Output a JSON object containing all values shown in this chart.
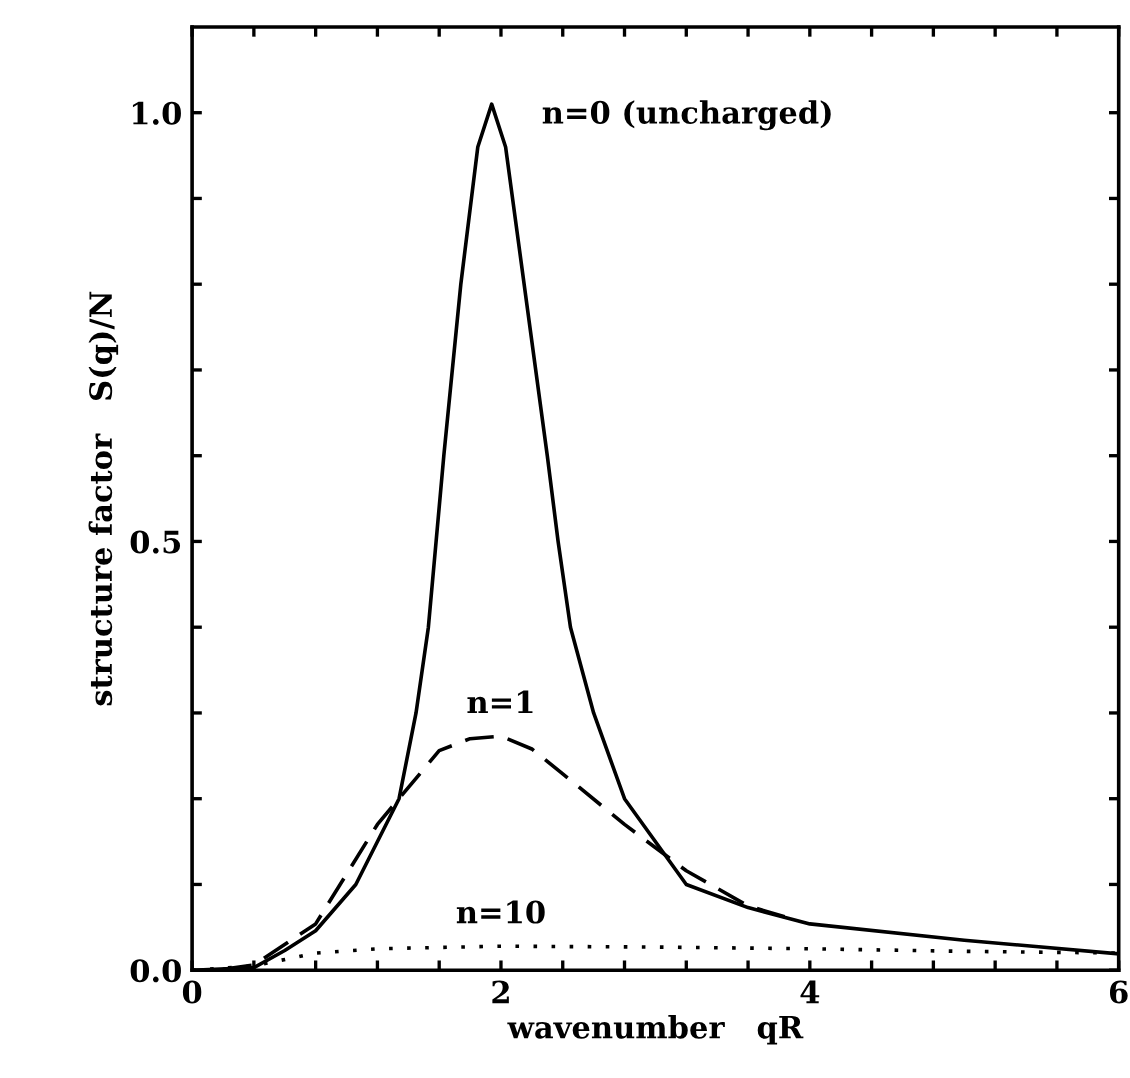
{
  "chart_data": {
    "type": "line",
    "xlabel": "wavenumber   qR",
    "ylabel": "structure factor   S(q)/N",
    "xlim": [
      0,
      6
    ],
    "ylim": [
      0,
      1.1
    ],
    "xticks": [
      0,
      {
        "value": 0.4,
        "label": null
      },
      {
        "value": 0.8,
        "label": null
      },
      {
        "value": 1.2,
        "label": null
      },
      {
        "value": 1.6,
        "label": null
      },
      2,
      {
        "value": 2.4,
        "label": null
      },
      {
        "value": 2.8,
        "label": null
      },
      {
        "value": 3.2,
        "label": null
      },
      {
        "value": 3.6,
        "label": null
      },
      4,
      {
        "value": 4.4,
        "label": null
      },
      {
        "value": 4.8,
        "label": null
      },
      {
        "value": 5.2,
        "label": null
      },
      {
        "value": 5.6,
        "label": null
      },
      6
    ],
    "yticks": [
      {
        "value": 0,
        "label": "0.0"
      },
      {
        "value": 0.1,
        "label": null
      },
      {
        "value": 0.2,
        "label": null
      },
      {
        "value": 0.3,
        "label": null
      },
      {
        "value": 0.4,
        "label": null
      },
      {
        "value": 0.5,
        "label": "0.5"
      },
      {
        "value": 0.6,
        "label": null
      },
      {
        "value": 0.7,
        "label": null
      },
      {
        "value": 0.8,
        "label": null
      },
      {
        "value": 0.9,
        "label": null
      },
      {
        "value": 1.0,
        "label": "1.0"
      }
    ],
    "grid": false,
    "legend": false,
    "series": [
      {
        "name": "n=0 (uncharged)",
        "color": "#000000",
        "line_style": "solid",
        "x": [
          0,
          0.4,
          0.6,
          0.8,
          1.06,
          1.34,
          1.45,
          1.53,
          1.58,
          1.63,
          1.74,
          1.85,
          1.94,
          2.03,
          2.15,
          2.3,
          2.37,
          2.45,
          2.6,
          2.8,
          3.2,
          3.6,
          4,
          5,
          6
        ],
        "values": [
          0,
          0.003,
          0.023,
          0.046,
          0.1,
          0.2,
          0.3,
          0.4,
          0.5,
          0.6,
          0.8,
          0.96,
          1.01,
          0.96,
          0.8,
          0.6,
          0.5,
          0.4,
          0.3,
          0.2,
          0.1,
          0.073,
          0.054,
          0.035,
          0.019
        ]
      },
      {
        "name": "n=1",
        "color": "#000000",
        "line_style": "dashed",
        "x": [
          0.2,
          0.4,
          0.8,
          1.2,
          1.6,
          1.8,
          2,
          2.2,
          2.4,
          2.8,
          3.2,
          3.6,
          3.9
        ],
        "values": [
          0.001,
          0.006,
          0.054,
          0.17,
          0.256,
          0.27,
          0.273,
          0.258,
          0.229,
          0.17,
          0.116,
          0.075,
          0.059
        ]
      },
      {
        "name": "n=10",
        "color": "#000000",
        "line_style": "dotted",
        "x": [
          0,
          0.4,
          0.8,
          1.2,
          2,
          3,
          4,
          5,
          6
        ],
        "values": [
          0,
          0.005,
          0.02,
          0.025,
          0.028,
          0.027,
          0.025,
          0.022,
          0.02
        ]
      }
    ]
  }
}
